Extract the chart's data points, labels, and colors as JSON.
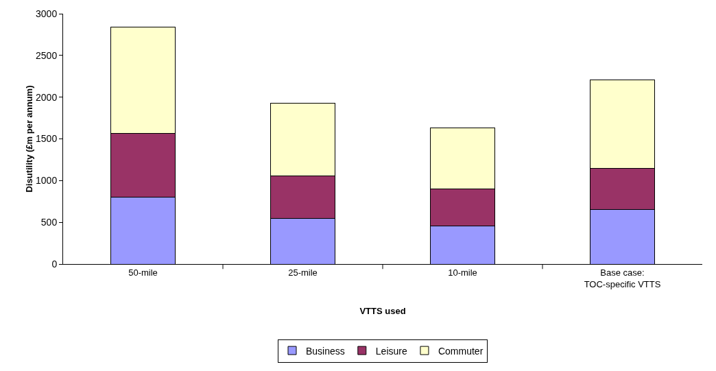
{
  "chart_data": {
    "type": "bar",
    "xlabel": "VTTS used",
    "ylabel": "Disutility (£m per annum)",
    "categories": [
      "50-mile",
      "25-mile",
      "10-mile",
      "Base case: TOC-specific VTTS"
    ],
    "stacked": true,
    "series": [
      {
        "name": "Business",
        "color": "#9999ff",
        "values": [
          805,
          545,
          460,
          650
        ]
      },
      {
        "name": "Leisure",
        "color": "#993366",
        "values": [
          760,
          515,
          440,
          500
        ]
      },
      {
        "name": "Commuter",
        "color": "#ffffcc",
        "values": [
          1275,
          870,
          735,
          1060
        ]
      }
    ],
    "ylim": [
      0,
      3000
    ],
    "yticks": [
      0,
      500,
      1000,
      1500,
      2000,
      2500,
      3000
    ],
    "grid": false,
    "legend": "bottom"
  }
}
